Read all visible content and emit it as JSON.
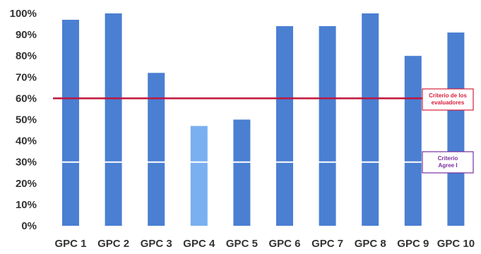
{
  "chart_data": {
    "type": "bar",
    "categories": [
      "GPC 1",
      "GPC 2",
      "GPC 3",
      "GPC 4",
      "GPC 5",
      "GPC 6",
      "GPC 7",
      "GPC 8",
      "GPC 9",
      "GPC 10"
    ],
    "values": [
      97,
      100,
      72,
      47,
      50,
      94,
      94,
      100,
      80,
      91
    ],
    "yticks": [
      "0%",
      "10%",
      "20%",
      "30%",
      "40%",
      "50%",
      "60%",
      "70%",
      "80%",
      "90%",
      "100%"
    ],
    "ylim": [
      0,
      100
    ],
    "grid": false,
    "highlight_category": "GPC 4",
    "reference_lines": [
      {
        "value": 60,
        "label_lines": [
          "Criterio de los",
          "evaluadores"
        ]
      },
      {
        "value": 30,
        "label_lines": [
          "Criterio",
          "Agree I"
        ]
      }
    ]
  },
  "colors": {
    "bar": "#4a7fd2",
    "bar_highlight": "#7ab0f0",
    "threshold_line": "#c0143c",
    "agree_line": "#ffffff",
    "threshold_label": "#d81e3a",
    "agree_label": "#7a2ea0"
  }
}
